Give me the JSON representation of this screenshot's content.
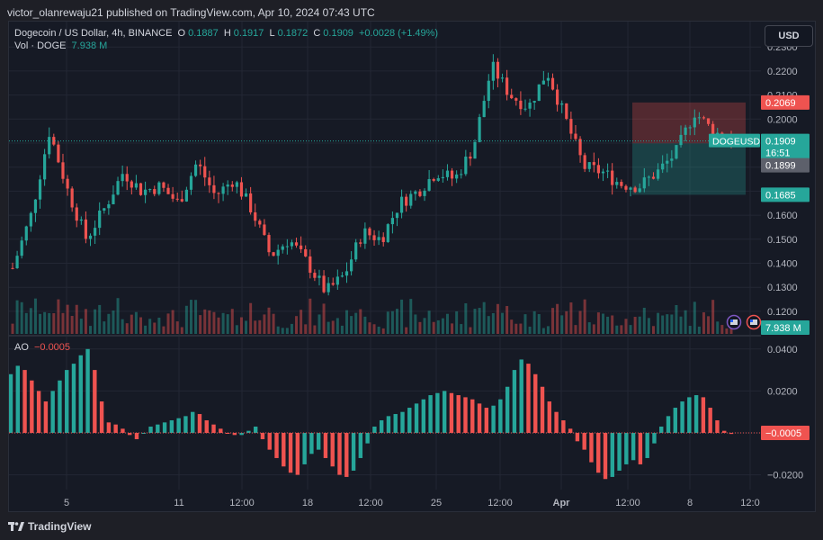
{
  "attribution": "victor_olanrewaju21 published on TradingView.com, Apr 10, 2024 07:43 UTC",
  "header": {
    "symbol": "Dogecoin / US Dollar, 4h, BINANCE",
    "open_label": "O",
    "open": "0.1887",
    "high_label": "H",
    "high": "0.1917",
    "low_label": "L",
    "low": "0.1872",
    "close_label": "C",
    "close": "0.1909",
    "change": "+0.0028 (+1.49%)",
    "volume_label": "Vol · DOGE",
    "volume": "7.938 M"
  },
  "currency_button": "USD",
  "price_axis": {
    "ticks": [
      "0.2300",
      "0.2200",
      "0.2100",
      "0.2000",
      "0.1900",
      "0.1800",
      "0.1700",
      "0.1600",
      "0.1500",
      "0.1400",
      "0.1300",
      "0.1200"
    ],
    "stop_label": "0.2069",
    "current_symbol": "DOGEUSD",
    "current_price": "0.1909",
    "countdown": "16:51",
    "entry_label": "0.1899",
    "target_label": "0.1685",
    "volume_label": "7.938 M"
  },
  "oscillator": {
    "name": "AO",
    "value": "−0.0005",
    "axis_ticks": [
      "0.0400",
      "0.0200",
      "0.0000",
      "−0.0200"
    ],
    "axis_value": "−0.0005"
  },
  "time_axis": [
    "5",
    "11",
    "12:00",
    "18",
    "12:00",
    "25",
    "12:00",
    "Apr",
    "12:00",
    "8",
    "12:0"
  ],
  "footer": "TradingView",
  "colors": {
    "up": "#26a69a",
    "down": "#ef5350",
    "background": "#161a25",
    "grid": "#232734"
  },
  "chart_data": {
    "type": "candlestick",
    "title": "Dogecoin / US Dollar, 4h, BINANCE",
    "ylim": [
      0.115,
      0.235
    ],
    "price_path": [
      [
        "Mar 3",
        0.138
      ],
      [
        "Mar 4",
        0.16
      ],
      [
        "Mar 5",
        0.195
      ],
      [
        "Mar 5 12:00",
        0.17
      ],
      [
        "Mar 6",
        0.15
      ],
      [
        "Mar 7",
        0.163
      ],
      [
        "Mar 8",
        0.178
      ],
      [
        "Mar 9",
        0.17
      ],
      [
        "Mar 10",
        0.172
      ],
      [
        "Mar 11",
        0.165
      ],
      [
        "Mar 12",
        0.182
      ],
      [
        "Mar 13",
        0.168
      ],
      [
        "Mar 14",
        0.175
      ],
      [
        "Mar 15",
        0.162
      ],
      [
        "Mar 16",
        0.143
      ],
      [
        "Mar 17",
        0.15
      ],
      [
        "Mar 18",
        0.14
      ],
      [
        "Mar 19",
        0.128
      ],
      [
        "Mar 20",
        0.135
      ],
      [
        "Mar 21",
        0.153
      ],
      [
        "Mar 22",
        0.15
      ],
      [
        "Mar 23",
        0.165
      ],
      [
        "Mar 24",
        0.17
      ],
      [
        "Mar 25",
        0.178
      ],
      [
        "Mar 26",
        0.175
      ],
      [
        "Mar 27",
        0.188
      ],
      [
        "Mar 28",
        0.222
      ],
      [
        "Mar 29",
        0.21
      ],
      [
        "Mar 30",
        0.205
      ],
      [
        "Mar 31",
        0.22
      ],
      [
        "Apr 1",
        0.2
      ],
      [
        "Apr 2",
        0.18
      ],
      [
        "Apr 3",
        0.178
      ],
      [
        "Apr 4",
        0.173
      ],
      [
        "Apr 5",
        0.172
      ],
      [
        "Apr 6",
        0.178
      ],
      [
        "Apr 7",
        0.186
      ],
      [
        "Apr 8",
        0.203
      ],
      [
        "Apr 9",
        0.195
      ],
      [
        "Apr 10",
        0.1909
      ]
    ],
    "ao_series": [
      0.028,
      0.032,
      0.03,
      0.025,
      0.02,
      0.015,
      0.02,
      0.025,
      0.03,
      0.033,
      0.037,
      0.04,
      0.03,
      0.015,
      0.005,
      0.004,
      0.002,
      -0.001,
      -0.003,
      0.0,
      0.003,
      0.004,
      0.005,
      0.006,
      0.007,
      0.008,
      0.01,
      0.009,
      0.006,
      0.004,
      0.002,
      0.0,
      -0.001,
      -0.001,
      0.001,
      0.003,
      -0.003,
      -0.008,
      -0.012,
      -0.016,
      -0.019,
      -0.02,
      -0.015,
      -0.01,
      -0.008,
      -0.012,
      -0.016,
      -0.02,
      -0.021,
      -0.018,
      -0.012,
      -0.005,
      0.003,
      0.006,
      0.008,
      0.009,
      0.01,
      0.012,
      0.014,
      0.016,
      0.018,
      0.019,
      0.02,
      0.019,
      0.018,
      0.017,
      0.016,
      0.014,
      0.012,
      0.013,
      0.016,
      0.022,
      0.03,
      0.035,
      0.033,
      0.028,
      0.022,
      0.015,
      0.01,
      0.006,
      0.002,
      -0.004,
      -0.008,
      -0.014,
      -0.019,
      -0.022,
      -0.021,
      -0.018,
      -0.015,
      -0.013,
      -0.015,
      -0.012,
      -0.005,
      0.003,
      0.008,
      0.012,
      0.015,
      0.017,
      0.018,
      0.017,
      0.012,
      0.006,
      0.001,
      -0.0005
    ],
    "position_box": {
      "stop": 0.2069,
      "entry": 0.1899,
      "target": 0.1685
    }
  }
}
